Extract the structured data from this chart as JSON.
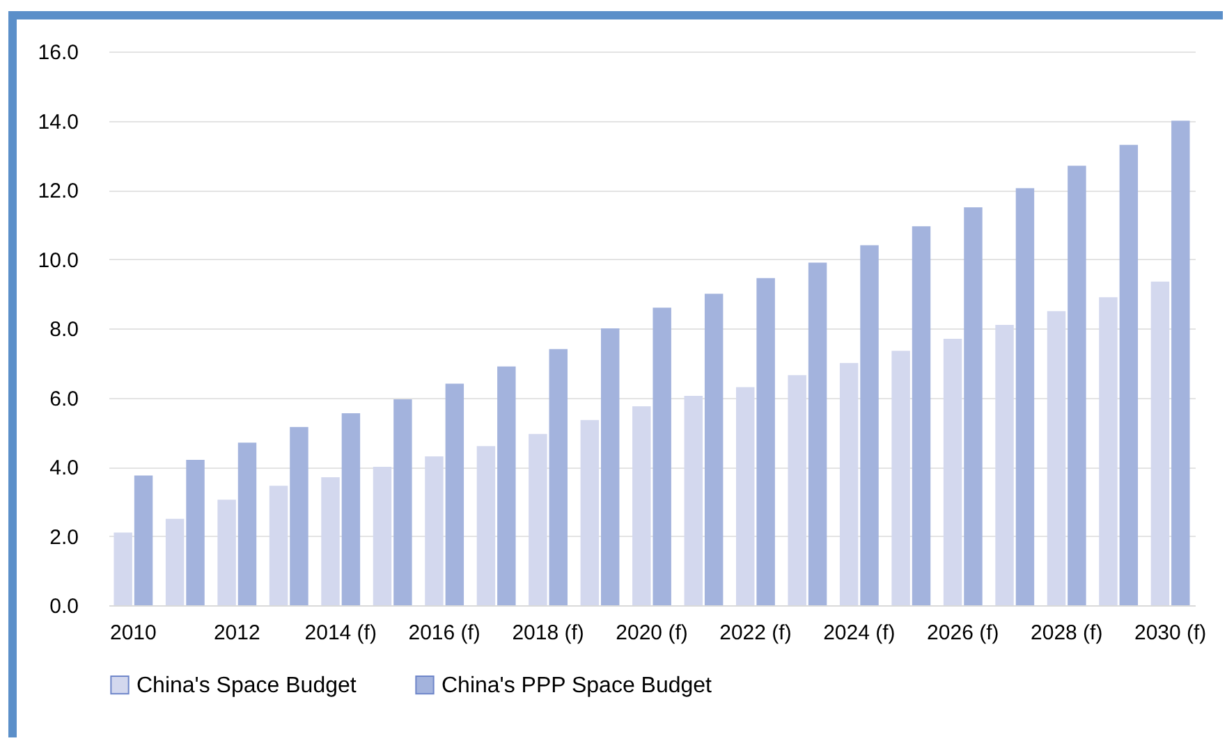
{
  "chart_data": {
    "type": "bar",
    "categories": [
      "2010",
      null,
      "2012",
      null,
      "2014 (f)",
      null,
      "2016 (f)",
      null,
      "2018 (f)",
      null,
      "2020 (f)",
      null,
      "2022 (f)",
      null,
      "2024 (f)",
      null,
      "2026 (f)",
      null,
      "2028 (f)",
      null,
      "2030 (f)"
    ],
    "series": [
      {
        "name": "China's Space Budget",
        "color": "#d3d8ee",
        "values": [
          2.1,
          2.5,
          3.05,
          3.45,
          3.7,
          4.0,
          4.3,
          4.6,
          4.95,
          5.35,
          5.75,
          6.05,
          6.3,
          6.65,
          7.0,
          7.35,
          7.7,
          8.1,
          8.5,
          8.9,
          9.35
        ]
      },
      {
        "name": "China's PPP Space Budget",
        "color": "#a3b3dd",
        "values": [
          3.75,
          4.2,
          4.7,
          5.15,
          5.55,
          5.95,
          6.4,
          6.9,
          7.4,
          8.0,
          8.6,
          9.0,
          9.45,
          9.9,
          10.4,
          10.95,
          11.5,
          12.05,
          12.7,
          13.3,
          14.0
        ]
      }
    ],
    "ylim": [
      0,
      16
    ],
    "yticks": [
      {
        "value": 0,
        "label": "0.0"
      },
      {
        "value": 2,
        "label": "2.0"
      },
      {
        "value": 4,
        "label": "4.0"
      },
      {
        "value": 6,
        "label": "6.0"
      },
      {
        "value": 8,
        "label": "8.0"
      },
      {
        "value": 10,
        "label": "10.0"
      },
      {
        "value": 12,
        "label": "12.0"
      },
      {
        "value": 14,
        "label": "14.0"
      },
      {
        "value": 16,
        "label": "16.0"
      }
    ],
    "grid": "y",
    "legend": "bottom"
  }
}
